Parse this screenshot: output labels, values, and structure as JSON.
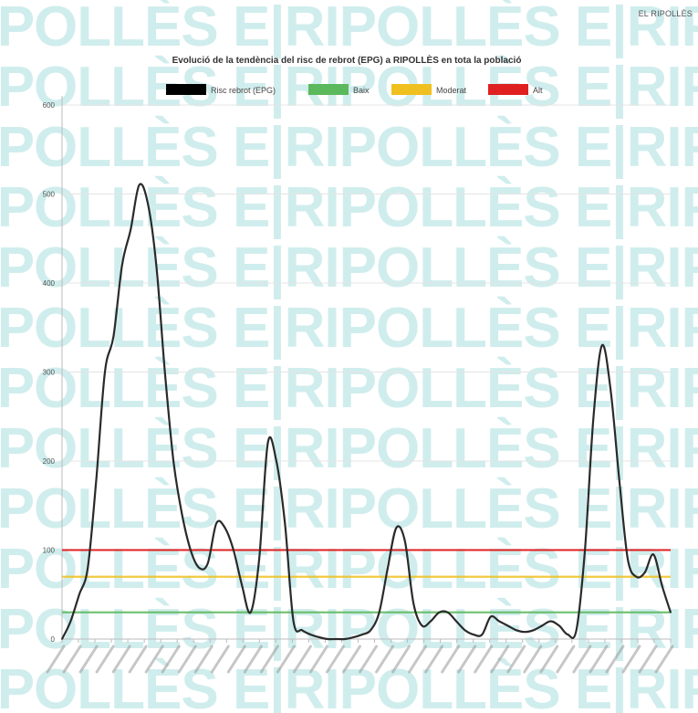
{
  "brand": "EL RIPOLLÈS",
  "watermark_text": "E|RIPOLLÈS",
  "colors": {
    "risk": "#000000",
    "low": "#5cb85c",
    "moderate": "#f0c020",
    "high": "#e02020",
    "watermark": "#64c4c4"
  },
  "chart_data": {
    "type": "line",
    "title": "Evolució de la tendència del risc de rebrot (EPG) a RIPOLLÈS en tota la població",
    "ylim": [
      0,
      600
    ],
    "yticks": [
      "0",
      "100",
      "200",
      "300",
      "400",
      "500",
      "600"
    ],
    "grid": true,
    "legend_position": "top",
    "legend": [
      {
        "key": "risk",
        "label": "Risc rebrot (EPG)"
      },
      {
        "key": "low",
        "label": "Baix"
      },
      {
        "key": "moderate",
        "label": "Moderat"
      },
      {
        "key": "high",
        "label": "Alt"
      }
    ],
    "thresholds": [
      {
        "key": "high",
        "value": 100
      },
      {
        "key": "moderate",
        "value": 70
      },
      {
        "key": "low",
        "value": 30
      }
    ],
    "n_points": 72,
    "x_tick_labels": [
      "",
      "",
      "",
      "",
      "",
      "",
      "",
      "",
      "",
      "",
      "",
      "",
      "",
      "",
      "",
      "",
      "",
      "",
      "",
      "",
      "",
      "",
      "",
      "",
      "",
      "",
      "",
      "",
      "",
      "",
      "",
      "",
      "",
      "",
      "",
      "",
      "",
      ""
    ],
    "series": [
      {
        "name": "Risc rebrot (EPG)",
        "key": "risk",
        "values": [
          0,
          20,
          50,
          80,
          180,
          300,
          340,
          420,
          460,
          510,
          490,
          420,
          300,
          200,
          140,
          100,
          80,
          85,
          130,
          125,
          100,
          60,
          30,
          90,
          220,
          200,
          130,
          20,
          10,
          5,
          2,
          0,
          0,
          0,
          2,
          5,
          10,
          30,
          80,
          125,
          110,
          40,
          15,
          20,
          30,
          30,
          20,
          10,
          5,
          5,
          25,
          20,
          15,
          10,
          8,
          10,
          15,
          20,
          15,
          5,
          10,
          100,
          250,
          330,
          280,
          180,
          90,
          70,
          75,
          95,
          60,
          30
        ]
      }
    ]
  }
}
